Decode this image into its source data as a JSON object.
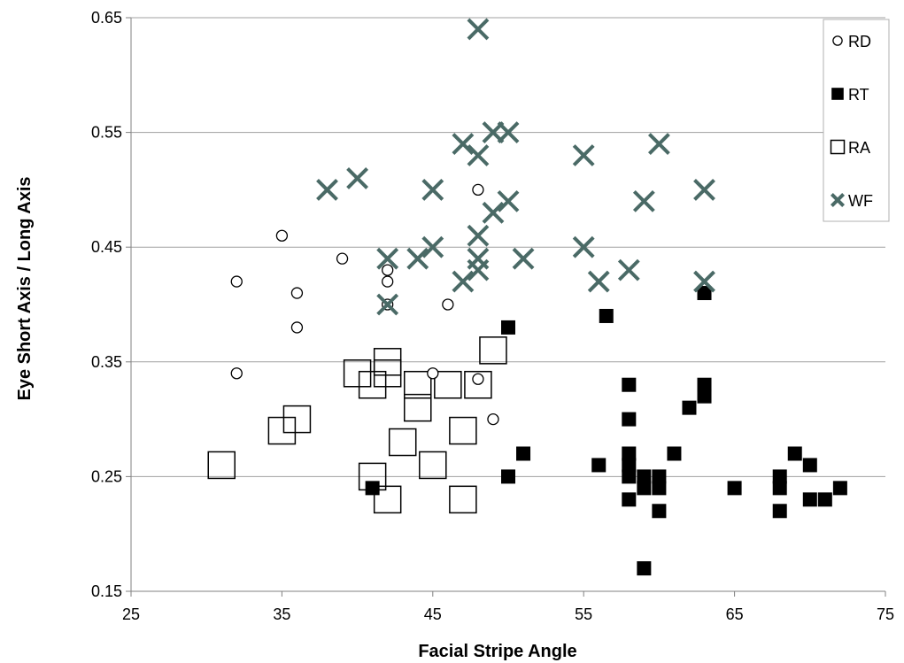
{
  "chart_data": {
    "type": "scatter",
    "title": "",
    "xlabel": "Facial Stripe Angle",
    "ylabel": "Eye Short Axis / Long Axis",
    "xlim": [
      25,
      75
    ],
    "ylim": [
      0.15,
      0.65
    ],
    "xticks": [
      "25",
      "35",
      "45",
      "55",
      "65",
      "75"
    ],
    "yticks": [
      "0.15",
      "0.25",
      "0.35",
      "0.45",
      "0.55",
      "0.65"
    ],
    "grid": "horizontal major gridlines",
    "legend_position": "top-right",
    "series": [
      {
        "name": "RD",
        "marker": "open-circle",
        "color": "#000000",
        "points": [
          [
            32,
            0.42
          ],
          [
            32,
            0.34
          ],
          [
            35,
            0.46
          ],
          [
            36,
            0.41
          ],
          [
            36,
            0.38
          ],
          [
            39,
            0.44
          ],
          [
            42,
            0.43
          ],
          [
            42,
            0.42
          ],
          [
            42,
            0.4
          ],
          [
            45,
            0.34
          ],
          [
            46,
            0.4
          ],
          [
            48,
            0.5
          ],
          [
            48,
            0.335
          ],
          [
            49,
            0.3
          ],
          [
            63,
            0.41
          ]
        ]
      },
      {
        "name": "RT",
        "marker": "filled-square",
        "color": "#000000",
        "points": [
          [
            41,
            0.24
          ],
          [
            50,
            0.38
          ],
          [
            50,
            0.25
          ],
          [
            51,
            0.27
          ],
          [
            56,
            0.26
          ],
          [
            56.5,
            0.39
          ],
          [
            58,
            0.33
          ],
          [
            58,
            0.3
          ],
          [
            58,
            0.27
          ],
          [
            58,
            0.26
          ],
          [
            58,
            0.25
          ],
          [
            58,
            0.23
          ],
          [
            59,
            0.25
          ],
          [
            59,
            0.24
          ],
          [
            59,
            0.17
          ],
          [
            60,
            0.25
          ],
          [
            60,
            0.24
          ],
          [
            60,
            0.22
          ],
          [
            61,
            0.27
          ],
          [
            62,
            0.31
          ],
          [
            63,
            0.33
          ],
          [
            63,
            0.32
          ],
          [
            63,
            0.41
          ],
          [
            65,
            0.24
          ],
          [
            68,
            0.25
          ],
          [
            68,
            0.24
          ],
          [
            68,
            0.22
          ],
          [
            69,
            0.27
          ],
          [
            70,
            0.26
          ],
          [
            70,
            0.23
          ],
          [
            71,
            0.23
          ],
          [
            72,
            0.24
          ]
        ]
      },
      {
        "name": "RA",
        "marker": "open-square",
        "color": "#000000",
        "points": [
          [
            31,
            0.26
          ],
          [
            35,
            0.29
          ],
          [
            36,
            0.3
          ],
          [
            40,
            0.34
          ],
          [
            41,
            0.33
          ],
          [
            41,
            0.25
          ],
          [
            42,
            0.35
          ],
          [
            42,
            0.34
          ],
          [
            42,
            0.23
          ],
          [
            43,
            0.28
          ],
          [
            44,
            0.33
          ],
          [
            44,
            0.31
          ],
          [
            45,
            0.26
          ],
          [
            46,
            0.33
          ],
          [
            47,
            0.29
          ],
          [
            47,
            0.23
          ],
          [
            48,
            0.33
          ],
          [
            49,
            0.36
          ]
        ]
      },
      {
        "name": "WF",
        "marker": "x",
        "color": "#4a6a66",
        "points": [
          [
            38,
            0.5
          ],
          [
            40,
            0.51
          ],
          [
            42,
            0.44
          ],
          [
            42,
            0.4
          ],
          [
            44,
            0.44
          ],
          [
            45,
            0.5
          ],
          [
            45,
            0.45
          ],
          [
            47,
            0.54
          ],
          [
            47,
            0.42
          ],
          [
            48,
            0.64
          ],
          [
            48,
            0.53
          ],
          [
            48,
            0.46
          ],
          [
            48,
            0.44
          ],
          [
            48,
            0.43
          ],
          [
            49,
            0.55
          ],
          [
            49,
            0.48
          ],
          [
            50,
            0.55
          ],
          [
            50,
            0.49
          ],
          [
            51,
            0.44
          ],
          [
            55,
            0.53
          ],
          [
            55,
            0.45
          ],
          [
            56,
            0.42
          ],
          [
            58,
            0.43
          ],
          [
            59,
            0.49
          ],
          [
            60,
            0.54
          ],
          [
            63,
            0.5
          ],
          [
            63,
            0.42
          ]
        ]
      }
    ]
  }
}
